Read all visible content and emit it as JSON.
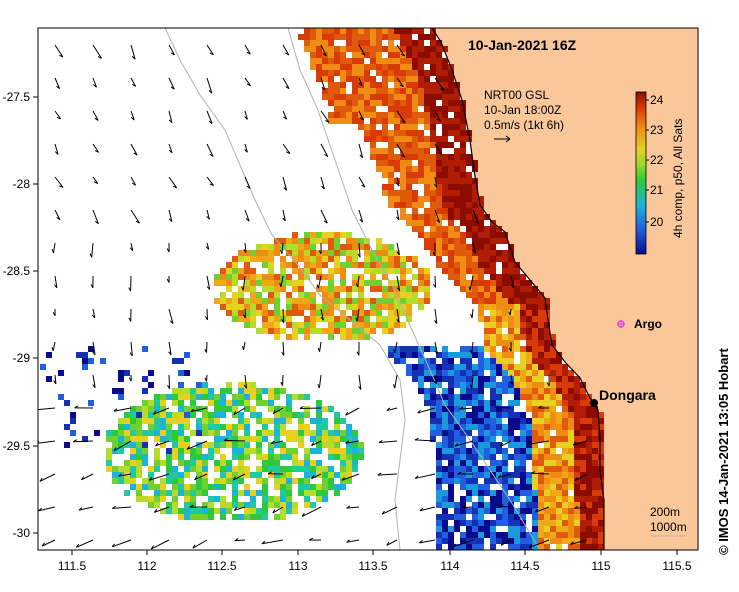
{
  "map": {
    "title": "10-Jan-2021 16Z",
    "product": {
      "line1": "NRT00 GSL",
      "line2": "10-Jan 18:00Z",
      "line3": "0.5m/s (1kt 6h)"
    },
    "x_ticks": [
      "111.5",
      "112",
      "112.5",
      "113",
      "113.5",
      "114",
      "114.5",
      "115",
      "115.5"
    ],
    "y_ticks": [
      "-27.5",
      "-28",
      "-28.5",
      "-29",
      "-29.5",
      "-30"
    ],
    "places": {
      "argo": "Argo",
      "dongara": "Dongara"
    },
    "depth_labels": {
      "d200": "200m",
      "d1000": "1000m"
    },
    "colorbar": {
      "ticks": [
        "24",
        "23",
        "22",
        "21",
        "20"
      ],
      "label": "4h comp, p50, All Sats"
    },
    "credit": "© IMOS 14-Jan-2021 13:05 Hobart",
    "colors": {
      "land": "#f9c79a",
      "coast": "#000000",
      "argo": "#e040e0"
    }
  }
}
